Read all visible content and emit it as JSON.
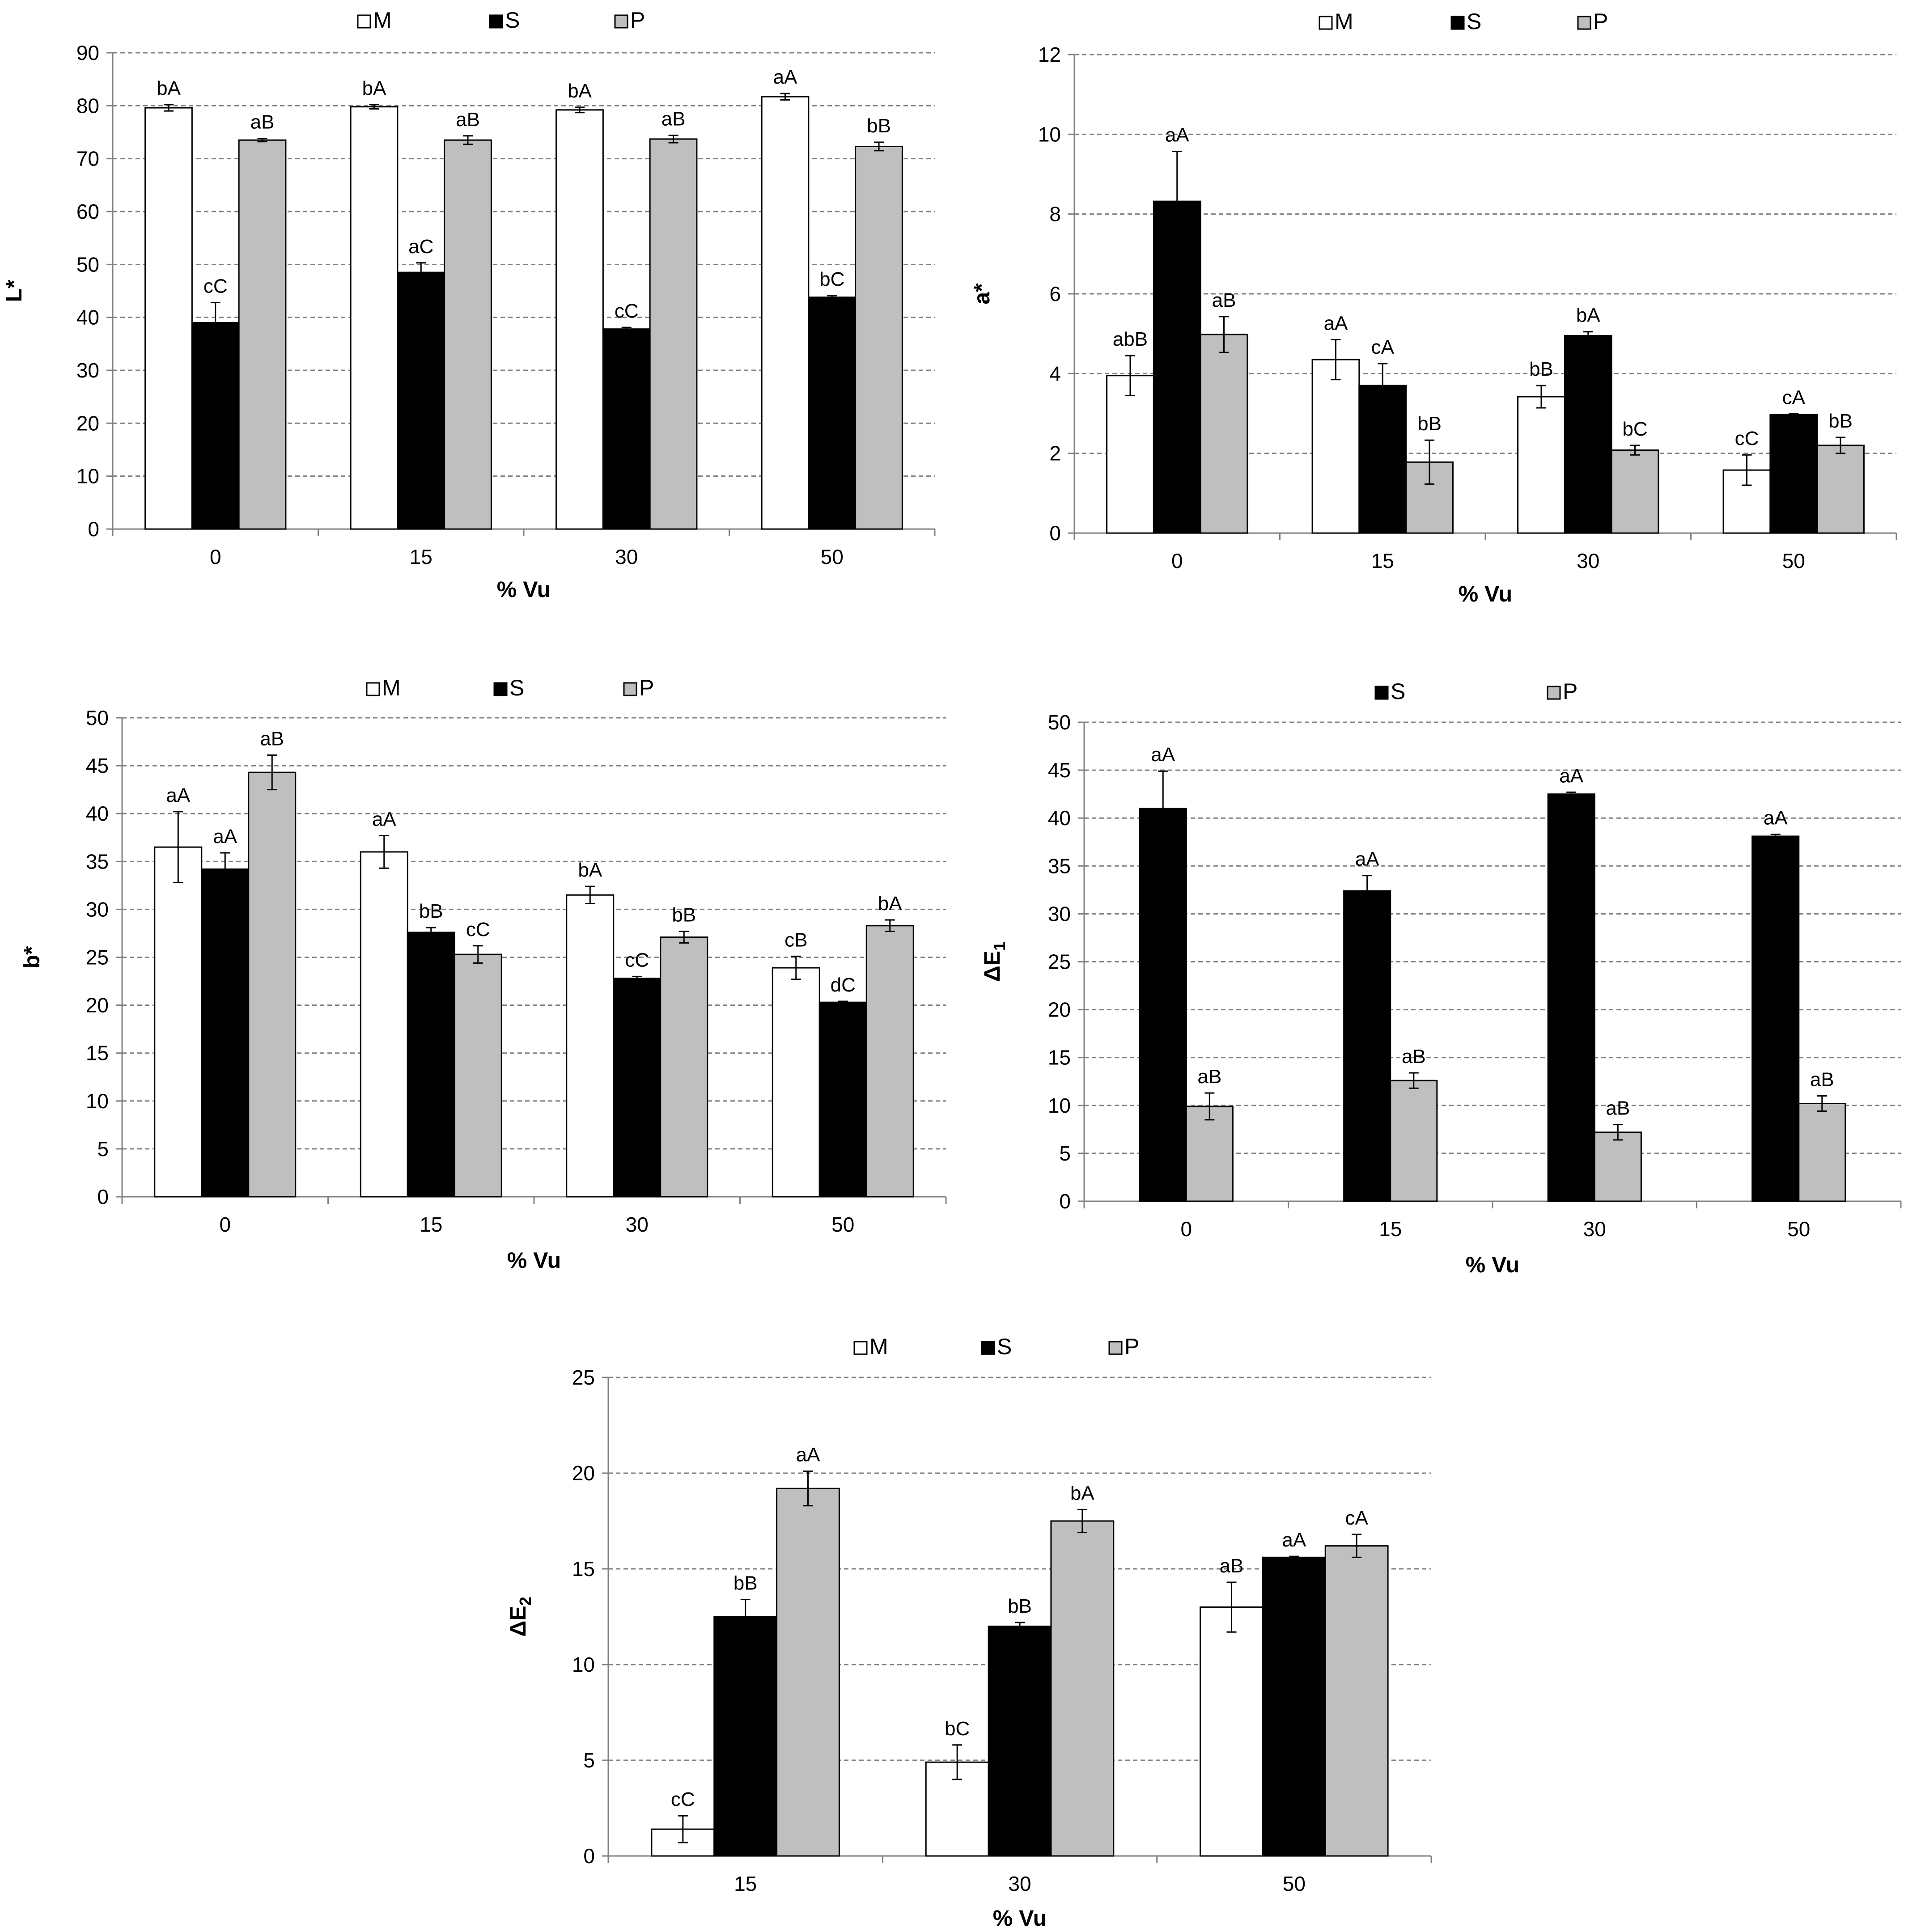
{
  "colors": {
    "M": "#ffffff",
    "S": "#000000",
    "P": "#bfbfbf",
    "grid": "#808080",
    "axis": "#808080"
  },
  "chart_data": [
    {
      "type": "bar",
      "categories": [
        "0",
        "15",
        "30",
        "50"
      ],
      "ylabel": "L*",
      "xlabel": "% Vu",
      "ylabel_sub": "",
      "ylim": [
        0,
        90
      ],
      "ytick_step": 10,
      "ytick_labels": [
        "0",
        "10",
        "20",
        "30",
        "40",
        "50",
        "60",
        "70",
        "80",
        "90"
      ],
      "legend": [
        "M",
        "S",
        "P"
      ],
      "series": [
        {
          "name": "M",
          "values": [
            79.6,
            79.8,
            79.2,
            81.7
          ],
          "errors": [
            0.6,
            0.4,
            0.5,
            0.6
          ],
          "labels": [
            "bA",
            "bA",
            "bA",
            "aA"
          ]
        },
        {
          "name": "S",
          "values": [
            39.0,
            48.5,
            37.8,
            43.8
          ],
          "errors": [
            3.8,
            1.8,
            0.3,
            0.3
          ],
          "labels": [
            "cC",
            "aC",
            "cC",
            "bC"
          ]
        },
        {
          "name": "P",
          "values": [
            73.5,
            73.5,
            73.7,
            72.3
          ],
          "errors": [
            0.3,
            0.8,
            0.7,
            0.8
          ],
          "labels": [
            "aB",
            "aB",
            "aB",
            "bB"
          ]
        }
      ]
    },
    {
      "type": "bar",
      "categories": [
        "0",
        "15",
        "30",
        "50"
      ],
      "ylabel": "a*",
      "xlabel": "% Vu",
      "ylabel_sub": "",
      "ylim": [
        0,
        12
      ],
      "ytick_step": 2,
      "ytick_labels": [
        "0",
        "2",
        "4",
        "6",
        "8",
        "10",
        "12"
      ],
      "legend": [
        "M",
        "S",
        "P"
      ],
      "series": [
        {
          "name": "M",
          "values": [
            3.95,
            4.35,
            3.42,
            1.58
          ],
          "errors": [
            0.5,
            0.5,
            0.28,
            0.38
          ],
          "labels": [
            "abB",
            "aA",
            "bB",
            "cC"
          ]
        },
        {
          "name": "S",
          "values": [
            8.32,
            3.7,
            4.95,
            2.97
          ],
          "errors": [
            1.25,
            0.55,
            0.1,
            0.02
          ],
          "labels": [
            "aA",
            "cA",
            "bA",
            "cA"
          ]
        },
        {
          "name": "P",
          "values": [
            4.98,
            1.78,
            2.08,
            2.2
          ],
          "errors": [
            0.45,
            0.55,
            0.12,
            0.2
          ],
          "labels": [
            "aB",
            "bB",
            "bC",
            "bB"
          ]
        }
      ]
    },
    {
      "type": "bar",
      "categories": [
        "0",
        "15",
        "30",
        "50"
      ],
      "ylabel": "b*",
      "xlabel": "% Vu",
      "ylabel_sub": "",
      "ylim": [
        0,
        50
      ],
      "ytick_step": 5,
      "ytick_labels": [
        "0",
        "5",
        "10",
        "15",
        "20",
        "25",
        "30",
        "35",
        "40",
        "45",
        "50"
      ],
      "legend": [
        "M",
        "S",
        "P"
      ],
      "series": [
        {
          "name": "M",
          "values": [
            36.5,
            36.0,
            31.5,
            23.9
          ],
          "errors": [
            3.7,
            1.7,
            0.9,
            1.2
          ],
          "labels": [
            "aA",
            "aA",
            "bA",
            "cB"
          ]
        },
        {
          "name": "S",
          "values": [
            34.2,
            27.6,
            22.8,
            20.3
          ],
          "errors": [
            1.7,
            0.5,
            0.2,
            0.1
          ],
          "labels": [
            "aA",
            "bB",
            "cC",
            "dC"
          ]
        },
        {
          "name": "P",
          "values": [
            44.3,
            25.3,
            27.1,
            28.3
          ],
          "errors": [
            1.8,
            0.9,
            0.6,
            0.6
          ],
          "labels": [
            "aB",
            "cC",
            "bB",
            "bA"
          ]
        }
      ]
    },
    {
      "type": "bar",
      "categories": [
        "0",
        "15",
        "30",
        "50"
      ],
      "ylabel": "ΔE",
      "ylabel_sub": "1",
      "xlabel": "% Vu",
      "ylim": [
        0,
        50
      ],
      "ytick_step": 5,
      "ytick_labels": [
        "0",
        "5",
        "10",
        "15",
        "20",
        "25",
        "30",
        "35",
        "40",
        "45",
        "50"
      ],
      "legend": [
        "S",
        "P"
      ],
      "series": [
        {
          "name": "S",
          "values": [
            41.0,
            32.4,
            42.5,
            38.1
          ],
          "errors": [
            3.9,
            1.6,
            0.2,
            0.2
          ],
          "labels": [
            "aA",
            "aA",
            "aA",
            "aA"
          ]
        },
        {
          "name": "P",
          "values": [
            9.9,
            12.6,
            7.2,
            10.2
          ],
          "errors": [
            1.4,
            0.8,
            0.8,
            0.8
          ],
          "labels": [
            "aB",
            "aB",
            "aB",
            "aB"
          ]
        }
      ]
    },
    {
      "type": "bar",
      "categories": [
        "15",
        "30",
        "50"
      ],
      "ylabel": "ΔE",
      "ylabel_sub": "2",
      "xlabel": "% Vu",
      "ylim": [
        0,
        25
      ],
      "ytick_step": 5,
      "ytick_labels": [
        "0",
        "5",
        "10",
        "15",
        "20",
        "25"
      ],
      "legend": [
        "M",
        "S",
        "P"
      ],
      "series": [
        {
          "name": "M",
          "values": [
            1.4,
            4.9,
            13.0
          ],
          "errors": [
            0.7,
            0.9,
            1.3
          ],
          "labels": [
            "cC",
            "bC",
            "aB"
          ]
        },
        {
          "name": "S",
          "values": [
            12.5,
            12.0,
            15.6
          ],
          "errors": [
            0.9,
            0.2,
            0.05
          ],
          "labels": [
            "bB",
            "bB",
            "aA"
          ]
        },
        {
          "name": "P",
          "values": [
            19.2,
            17.5,
            16.2
          ],
          "errors": [
            0.9,
            0.6,
            0.6
          ],
          "labels": [
            "aA",
            "bA",
            "cA"
          ]
        }
      ]
    }
  ]
}
